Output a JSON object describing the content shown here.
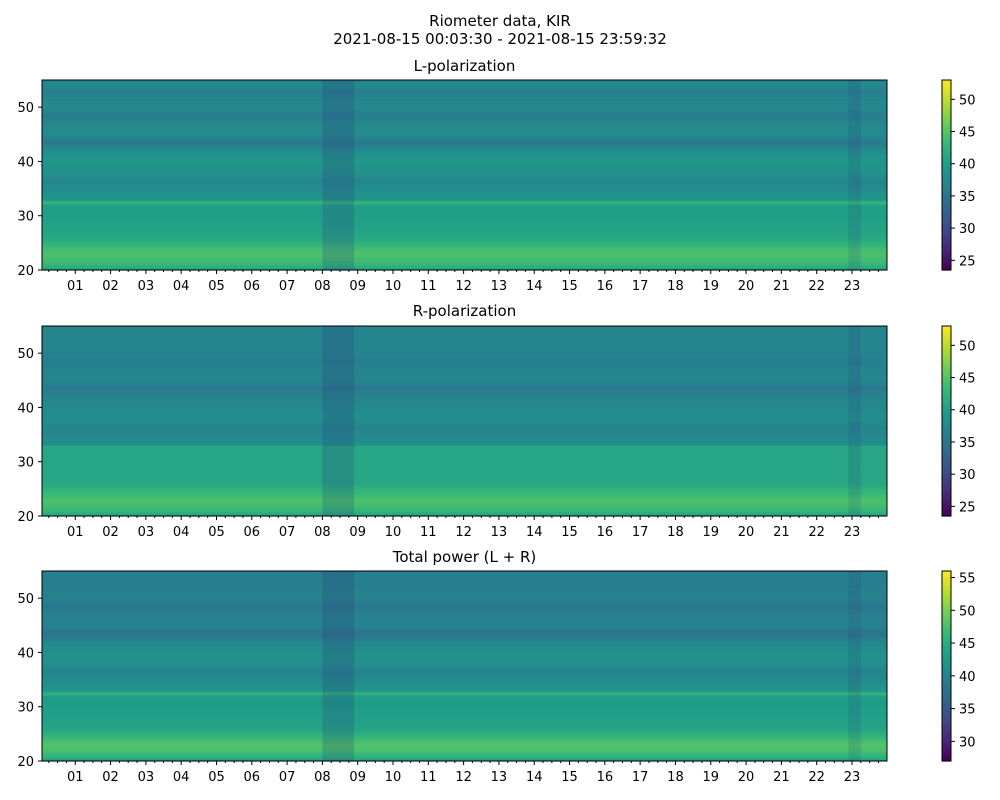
{
  "figure": {
    "title_line1": "Riometer data, KIR",
    "title_line2": "2021-08-15 00:03:30 - 2021-08-15 23:59:32"
  },
  "chart_data": [
    {
      "type": "heatmap",
      "title": "L-polarization",
      "colormap": "viridis",
      "x_tick_labels": [
        "01",
        "02",
        "03",
        "04",
        "05",
        "06",
        "07",
        "08",
        "09",
        "10",
        "11",
        "12",
        "13",
        "14",
        "15",
        "16",
        "17",
        "18",
        "19",
        "20",
        "21",
        "22",
        "23"
      ],
      "x_range_hours": [
        0.058,
        23.992
      ],
      "y_ticks": [
        20,
        30,
        40,
        50
      ],
      "ylim": [
        20,
        55
      ],
      "colorbar_ticks": [
        25,
        30,
        35,
        40,
        45,
        50
      ],
      "colorbar_range": [
        23.5,
        53
      ],
      "row_profile": [
        {
          "y": 20,
          "v": 40
        },
        {
          "y": 21,
          "v": 43
        },
        {
          "y": 22,
          "v": 44
        },
        {
          "y": 23,
          "v": 44.5
        },
        {
          "y": 24,
          "v": 44
        },
        {
          "y": 25,
          "v": 42.5
        },
        {
          "y": 26,
          "v": 41
        },
        {
          "y": 28,
          "v": 40.5
        },
        {
          "y": 30,
          "v": 40
        },
        {
          "y": 32,
          "v": 40
        },
        {
          "y": 32.5,
          "v": 44
        },
        {
          "y": 33,
          "v": 39
        },
        {
          "y": 35,
          "v": 38
        },
        {
          "y": 36.5,
          "v": 37
        },
        {
          "y": 38,
          "v": 38.5
        },
        {
          "y": 40,
          "v": 39
        },
        {
          "y": 42,
          "v": 38
        },
        {
          "y": 43.5,
          "v": 35.5
        },
        {
          "y": 45,
          "v": 37.5
        },
        {
          "y": 47,
          "v": 37.5
        },
        {
          "y": 48.5,
          "v": 36
        },
        {
          "y": 50,
          "v": 37.5
        },
        {
          "y": 52,
          "v": 37
        },
        {
          "y": 53,
          "v": 36
        },
        {
          "y": 54,
          "v": 37.5
        },
        {
          "y": 55,
          "v": 37
        }
      ]
    },
    {
      "type": "heatmap",
      "title": "R-polarization",
      "colormap": "viridis",
      "x_tick_labels": [
        "01",
        "02",
        "03",
        "04",
        "05",
        "06",
        "07",
        "08",
        "09",
        "10",
        "11",
        "12",
        "13",
        "14",
        "15",
        "16",
        "17",
        "18",
        "19",
        "20",
        "21",
        "22",
        "23"
      ],
      "x_range_hours": [
        0.058,
        23.992
      ],
      "y_ticks": [
        20,
        30,
        40,
        50
      ],
      "ylim": [
        20,
        55
      ],
      "colorbar_ticks": [
        25,
        30,
        35,
        40,
        45,
        50
      ],
      "colorbar_range": [
        23.5,
        53
      ],
      "row_profile": [
        {
          "y": 20,
          "v": 40
        },
        {
          "y": 21,
          "v": 43
        },
        {
          "y": 22,
          "v": 44
        },
        {
          "y": 23,
          "v": 44.5
        },
        {
          "y": 24,
          "v": 43.5
        },
        {
          "y": 25,
          "v": 42.5
        },
        {
          "y": 26,
          "v": 41
        },
        {
          "y": 28,
          "v": 41
        },
        {
          "y": 30,
          "v": 41
        },
        {
          "y": 32,
          "v": 41
        },
        {
          "y": 33,
          "v": 41
        },
        {
          "y": 33.2,
          "v": 38
        },
        {
          "y": 35,
          "v": 37.5
        },
        {
          "y": 36.5,
          "v": 37
        },
        {
          "y": 38,
          "v": 38
        },
        {
          "y": 40,
          "v": 37.5
        },
        {
          "y": 42,
          "v": 37
        },
        {
          "y": 43.5,
          "v": 35.5
        },
        {
          "y": 45,
          "v": 37
        },
        {
          "y": 47,
          "v": 37
        },
        {
          "y": 48.5,
          "v": 36
        },
        {
          "y": 50,
          "v": 37
        },
        {
          "y": 52,
          "v": 37
        },
        {
          "y": 55,
          "v": 37
        }
      ]
    },
    {
      "type": "heatmap",
      "title": "Total power (L + R)",
      "colormap": "viridis",
      "x_tick_labels": [
        "01",
        "02",
        "03",
        "04",
        "05",
        "06",
        "07",
        "08",
        "09",
        "10",
        "11",
        "12",
        "13",
        "14",
        "15",
        "16",
        "17",
        "18",
        "19",
        "20",
        "21",
        "22",
        "23"
      ],
      "x_range_hours": [
        0.058,
        23.992
      ],
      "y_ticks": [
        20,
        30,
        40,
        50
      ],
      "ylim": [
        20,
        55
      ],
      "colorbar_ticks": [
        30,
        35,
        40,
        45,
        50,
        55
      ],
      "colorbar_range": [
        27,
        56
      ],
      "row_profile": [
        {
          "y": 20,
          "v": 43
        },
        {
          "y": 21,
          "v": 46
        },
        {
          "y": 22,
          "v": 47.5
        },
        {
          "y": 23,
          "v": 48
        },
        {
          "y": 24,
          "v": 47
        },
        {
          "y": 25,
          "v": 45.5
        },
        {
          "y": 26,
          "v": 44
        },
        {
          "y": 28,
          "v": 43.5
        },
        {
          "y": 30,
          "v": 43
        },
        {
          "y": 32,
          "v": 43
        },
        {
          "y": 32.5,
          "v": 47
        },
        {
          "y": 33,
          "v": 42
        },
        {
          "y": 35,
          "v": 41
        },
        {
          "y": 36.5,
          "v": 40
        },
        {
          "y": 38,
          "v": 41.5
        },
        {
          "y": 40,
          "v": 41.5
        },
        {
          "y": 42,
          "v": 40.5
        },
        {
          "y": 43.5,
          "v": 38
        },
        {
          "y": 45,
          "v": 40
        },
        {
          "y": 47,
          "v": 40
        },
        {
          "y": 48.5,
          "v": 38.5
        },
        {
          "y": 50,
          "v": 40
        },
        {
          "y": 52,
          "v": 39.5
        },
        {
          "y": 55,
          "v": 39.5
        }
      ]
    }
  ]
}
